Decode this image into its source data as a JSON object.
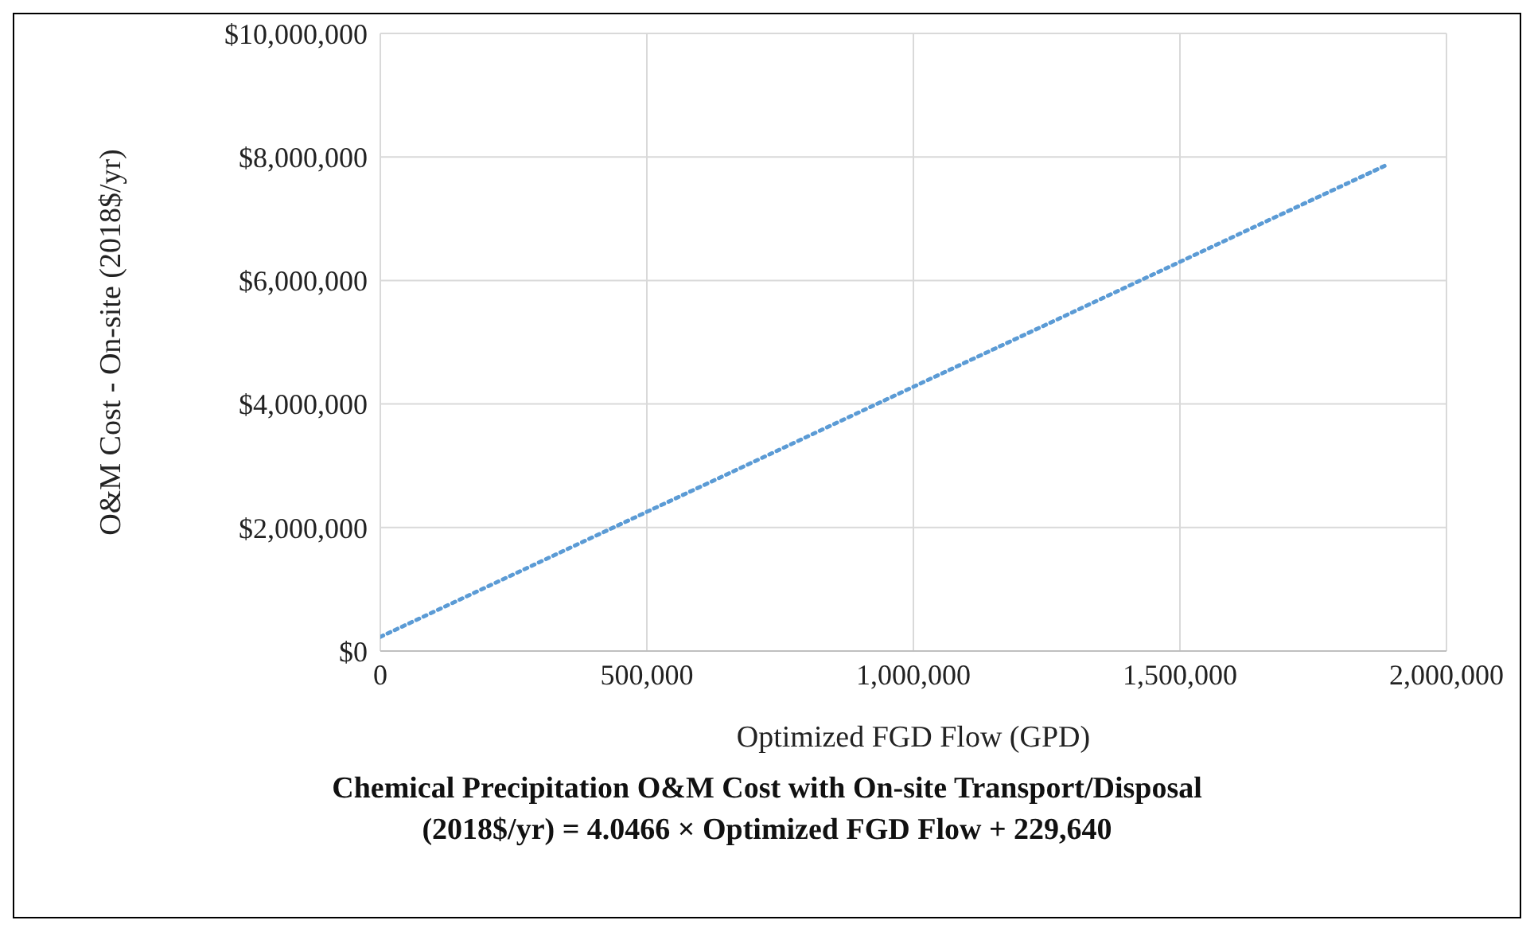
{
  "chart_data": {
    "type": "line",
    "title": "Chemical Precipitation O&M Cost with On-site Transport/Disposal (2018$/yr) = 4.0466 × Optimized  FGD Flow + 229,640",
    "xlabel": "Optimized FGD Flow (GPD)",
    "ylabel": "O&M Cost - On-site (2018$/yr)",
    "series": [
      {
        "color": "#5b9bd5",
        "x": [
          0,
          1890000
        ],
        "values": [
          230000,
          7880000
        ]
      }
    ],
    "xlim": [
      0,
      2000000
    ],
    "xticks": [
      0,
      {
        "value": 500000,
        "label": "500,000"
      },
      {
        "value": 1000000,
        "label": "1,000,000"
      },
      {
        "value": 1500000,
        "label": "1,500,000"
      },
      {
        "value": 2000000,
        "label": "2,000,000"
      }
    ],
    "ylim": [
      0,
      10000000
    ],
    "yticks": [
      {
        "value": 0,
        "label": "$0"
      },
      {
        "value": 2000000,
        "label": "$2,000,000"
      },
      {
        "value": 4000000,
        "label": "$4,000,000"
      },
      {
        "value": 6000000,
        "label": "$6,000,000"
      },
      {
        "value": 8000000,
        "label": "$8,000,000"
      },
      {
        "value": 10000000,
        "label": "$10,000,000"
      }
    ],
    "grid": true,
    "line_style": "dotted"
  }
}
